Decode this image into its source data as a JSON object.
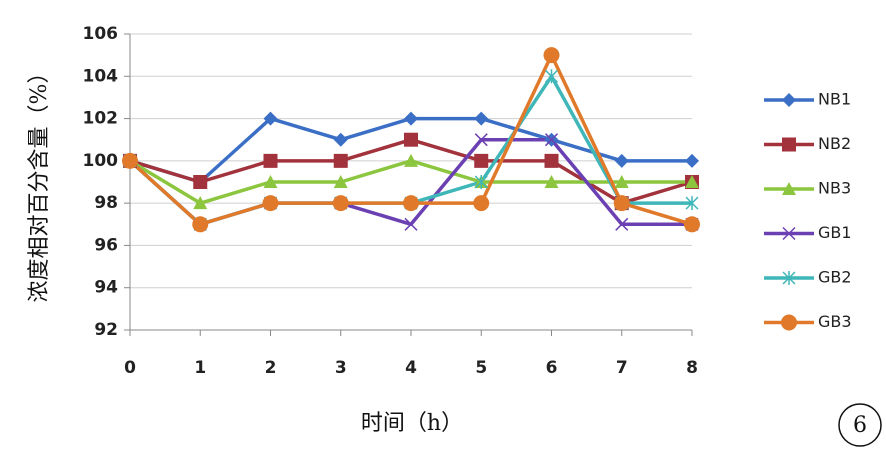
{
  "chart_data": {
    "type": "line",
    "y_label": "浓度相对百分含量（%）",
    "x_label": "时间（h）",
    "annotation": "6",
    "x": [
      0,
      1,
      2,
      3,
      4,
      5,
      6,
      7,
      8
    ],
    "xlim": [
      0,
      8
    ],
    "xticks": [
      0,
      1,
      2,
      3,
      4,
      5,
      6,
      7,
      8
    ],
    "ylim": [
      92,
      106
    ],
    "yticks": [
      92,
      94,
      96,
      98,
      100,
      102,
      104,
      106
    ],
    "grid": true,
    "legend": "right",
    "series": [
      {
        "name": "NB1",
        "color": "#3b6fc6",
        "marker": "diamond",
        "values": [
          100,
          99,
          102,
          101,
          102,
          102,
          101,
          100,
          100
        ]
      },
      {
        "name": "NB2",
        "color": "#a2323c",
        "marker": "square",
        "values": [
          100,
          99,
          100,
          100,
          101,
          100,
          100,
          98,
          99
        ]
      },
      {
        "name": "NB3",
        "color": "#8cc63f",
        "marker": "triangle",
        "values": [
          100,
          98,
          99,
          99,
          100,
          99,
          99,
          99,
          99
        ]
      },
      {
        "name": "GB1",
        "color": "#6b40b2",
        "marker": "x",
        "values": [
          100,
          97,
          98,
          98,
          97,
          101,
          101,
          97,
          97
        ]
      },
      {
        "name": "GB2",
        "color": "#3fb6b8",
        "marker": "star",
        "values": [
          100,
          97,
          98,
          98,
          98,
          99,
          104,
          98,
          98
        ]
      },
      {
        "name": "GB3",
        "color": "#e07a2a",
        "marker": "circle",
        "values": [
          100,
          97,
          98,
          98,
          98,
          98,
          105,
          98,
          97
        ]
      }
    ]
  }
}
